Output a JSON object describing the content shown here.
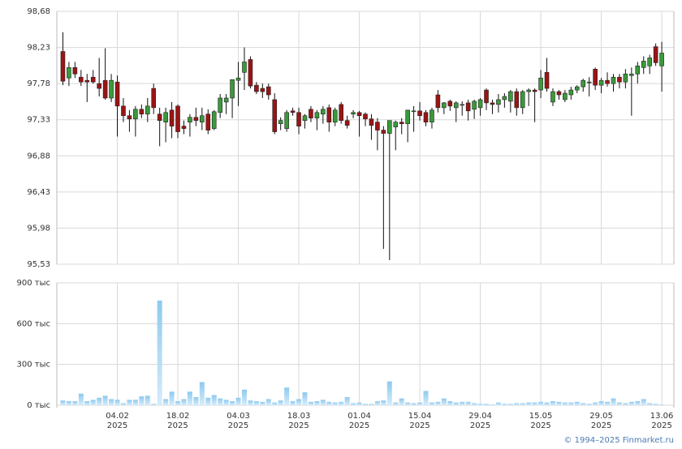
{
  "chart_data": [
    {
      "type": "candlestick",
      "ylim": [
        95.53,
        98.68
      ],
      "yticks": [
        {
          "value": 95.53,
          "label": "95,53"
        },
        {
          "value": 95.98,
          "label": "95,98"
        },
        {
          "value": 96.43,
          "label": "96,43"
        },
        {
          "value": 96.88,
          "label": "96,88"
        },
        {
          "value": 97.33,
          "label": "97,33"
        },
        {
          "value": 97.78,
          "label": "97,78"
        },
        {
          "value": 98.23,
          "label": "98,23"
        },
        {
          "value": 98.68,
          "label": "98,68"
        }
      ],
      "xlim": [
        -1,
        101
      ],
      "grid": true,
      "up_color": "#3a9a3a",
      "down_color": "#9b1414",
      "open": [
        98.18,
        97.85,
        97.98,
        97.86,
        97.82,
        97.86,
        97.78,
        97.82,
        97.6,
        97.8,
        97.5,
        97.38,
        97.34,
        97.46,
        97.4,
        97.72,
        97.4,
        97.3,
        97.45,
        97.5,
        97.25,
        97.3,
        97.36,
        97.3,
        97.4,
        97.22,
        97.42,
        97.55,
        97.6,
        97.82,
        97.92,
        98.08,
        97.76,
        97.72,
        97.74,
        97.58,
        97.28,
        97.22,
        97.44,
        97.42,
        97.32,
        97.46,
        97.35,
        97.4,
        97.48,
        97.3,
        97.52,
        97.32,
        97.4,
        97.42,
        97.4,
        97.34,
        97.3,
        97.2,
        97.16,
        97.24,
        97.3,
        97.28,
        97.44,
        97.44,
        97.42,
        97.3,
        97.64,
        97.48,
        97.56,
        97.48,
        97.52,
        97.54,
        97.46,
        97.48,
        97.7,
        97.54,
        97.52,
        97.58,
        97.56,
        97.68,
        97.48,
        97.68,
        97.7,
        97.7,
        97.92,
        97.55,
        97.68,
        97.58,
        97.64,
        97.7,
        97.74,
        97.8,
        97.96,
        97.76,
        97.82,
        97.78,
        97.86,
        97.8,
        97.88,
        97.9,
        97.98,
        98.0,
        98.24,
        98.0
      ],
      "high": [
        98.42,
        98.05,
        98.05,
        97.95,
        97.9,
        97.95,
        98.1,
        98.22,
        97.9,
        97.88,
        97.6,
        97.45,
        97.5,
        97.52,
        97.6,
        97.78,
        97.48,
        97.48,
        97.55,
        97.52,
        97.32,
        97.4,
        97.48,
        97.48,
        97.46,
        97.45,
        97.65,
        97.65,
        97.82,
        98.05,
        98.23,
        98.12,
        97.8,
        97.78,
        97.78,
        97.66,
        97.36,
        97.45,
        97.48,
        97.48,
        97.4,
        97.5,
        97.45,
        97.5,
        97.52,
        97.48,
        97.55,
        97.38,
        97.45,
        97.44,
        97.42,
        97.4,
        97.35,
        97.25,
        97.32,
        97.32,
        97.35,
        97.45,
        97.5,
        97.55,
        97.45,
        97.48,
        97.7,
        97.55,
        97.58,
        97.56,
        97.56,
        97.58,
        97.58,
        97.6,
        97.72,
        97.58,
        97.65,
        97.66,
        97.7,
        97.72,
        97.7,
        97.72,
        97.72,
        97.95,
        98.1,
        97.72,
        97.7,
        97.7,
        97.74,
        97.76,
        97.84,
        97.86,
        97.98,
        97.85,
        97.92,
        97.9,
        97.9,
        97.96,
        97.98,
        98.05,
        98.12,
        98.14,
        98.28,
        98.3
      ],
      "low": [
        97.76,
        97.75,
        97.85,
        97.75,
        97.55,
        97.78,
        97.62,
        97.58,
        97.55,
        97.12,
        97.3,
        97.18,
        97.12,
        97.35,
        97.3,
        97.4,
        97.0,
        97.05,
        97.1,
        97.1,
        97.15,
        97.12,
        97.25,
        97.2,
        97.15,
        97.2,
        97.35,
        97.4,
        97.35,
        97.5,
        97.7,
        97.72,
        97.65,
        97.6,
        97.58,
        97.15,
        97.2,
        97.18,
        97.38,
        97.15,
        97.22,
        97.3,
        97.2,
        97.28,
        97.18,
        97.25,
        97.28,
        97.22,
        97.35,
        97.12,
        97.25,
        97.08,
        96.95,
        95.72,
        95.58,
        96.95,
        97.15,
        97.05,
        97.18,
        97.32,
        97.25,
        97.22,
        97.42,
        97.4,
        97.44,
        97.3,
        97.38,
        97.32,
        97.34,
        97.38,
        97.45,
        97.4,
        97.42,
        97.48,
        97.42,
        97.38,
        97.4,
        97.5,
        97.3,
        97.6,
        97.68,
        97.5,
        97.58,
        97.55,
        97.58,
        97.66,
        97.68,
        97.62,
        97.7,
        97.66,
        97.74,
        97.68,
        97.72,
        97.72,
        97.38,
        97.78,
        97.9,
        97.9,
        98.0,
        97.68
      ],
      "close": [
        97.81,
        97.98,
        97.9,
        97.8,
        97.8,
        97.8,
        97.72,
        97.6,
        97.82,
        97.5,
        97.38,
        97.34,
        97.46,
        97.4,
        97.5,
        97.48,
        97.32,
        97.42,
        97.25,
        97.18,
        97.22,
        97.36,
        97.32,
        97.38,
        97.2,
        97.43,
        97.6,
        97.6,
        97.83,
        97.85,
        98.05,
        97.75,
        97.68,
        97.68,
        97.64,
        97.18,
        97.32,
        97.42,
        97.42,
        97.25,
        97.38,
        97.35,
        97.42,
        97.46,
        97.3,
        97.45,
        97.32,
        97.26,
        97.42,
        97.38,
        97.34,
        97.26,
        97.2,
        97.16,
        97.32,
        97.3,
        97.28,
        97.45,
        97.44,
        97.38,
        97.3,
        97.45,
        97.48,
        97.54,
        97.5,
        97.54,
        97.52,
        97.44,
        97.56,
        97.58,
        97.54,
        97.52,
        97.58,
        97.62,
        97.68,
        97.48,
        97.68,
        97.7,
        97.68,
        97.85,
        97.72,
        97.68,
        97.64,
        97.66,
        97.7,
        97.74,
        97.82,
        97.8,
        97.76,
        97.82,
        97.78,
        97.86,
        97.8,
        97.9,
        97.9,
        98.0,
        98.06,
        98.1,
        98.04,
        98.16
      ]
    },
    {
      "type": "bar",
      "color": "#8ec9ef",
      "ylim": [
        0,
        900
      ],
      "yticks": [
        {
          "value": 0,
          "label": "0 тыс"
        },
        {
          "value": 300,
          "label": "300 тыс"
        },
        {
          "value": 600,
          "label": "600 тыс"
        },
        {
          "value": 900,
          "label": "900 тыс"
        }
      ],
      "xlim": [
        -1,
        101
      ],
      "grid": true,
      "xticks": [
        {
          "value": 9,
          "label": "04.02",
          "year": "2025"
        },
        {
          "value": 19,
          "label": "18.02",
          "year": "2025"
        },
        {
          "value": 29,
          "label": "04.03",
          "year": "2025"
        },
        {
          "value": 39,
          "label": "18.03",
          "year": "2025"
        },
        {
          "value": 49,
          "label": "01.04",
          "year": "2025"
        },
        {
          "value": 59,
          "label": "15.04",
          "year": "2025"
        },
        {
          "value": 69,
          "label": "29.04",
          "year": "2025"
        },
        {
          "value": 79,
          "label": "15.05",
          "year": "2025"
        },
        {
          "value": 89,
          "label": "29.05",
          "year": "2025"
        },
        {
          "value": 99,
          "label": "13.06",
          "year": "2025"
        }
      ],
      "values": [
        35,
        30,
        30,
        85,
        30,
        40,
        55,
        70,
        45,
        40,
        15,
        40,
        40,
        65,
        70,
        10,
        770,
        45,
        100,
        30,
        45,
        100,
        60,
        170,
        55,
        75,
        50,
        40,
        30,
        55,
        115,
        35,
        30,
        25,
        45,
        20,
        35,
        130,
        30,
        45,
        95,
        25,
        30,
        40,
        25,
        20,
        25,
        60,
        15,
        20,
        10,
        10,
        30,
        35,
        175,
        20,
        50,
        20,
        15,
        20,
        105,
        20,
        25,
        50,
        30,
        20,
        25,
        25,
        15,
        10,
        10,
        5,
        20,
        10,
        10,
        15,
        15,
        20,
        20,
        25,
        20,
        30,
        25,
        20,
        20,
        25,
        15,
        10,
        20,
        30,
        25,
        50,
        20,
        15,
        25,
        30,
        45,
        15,
        10,
        5
      ],
      "footer": "© 1994–2025 Finmarket.ru"
    }
  ]
}
